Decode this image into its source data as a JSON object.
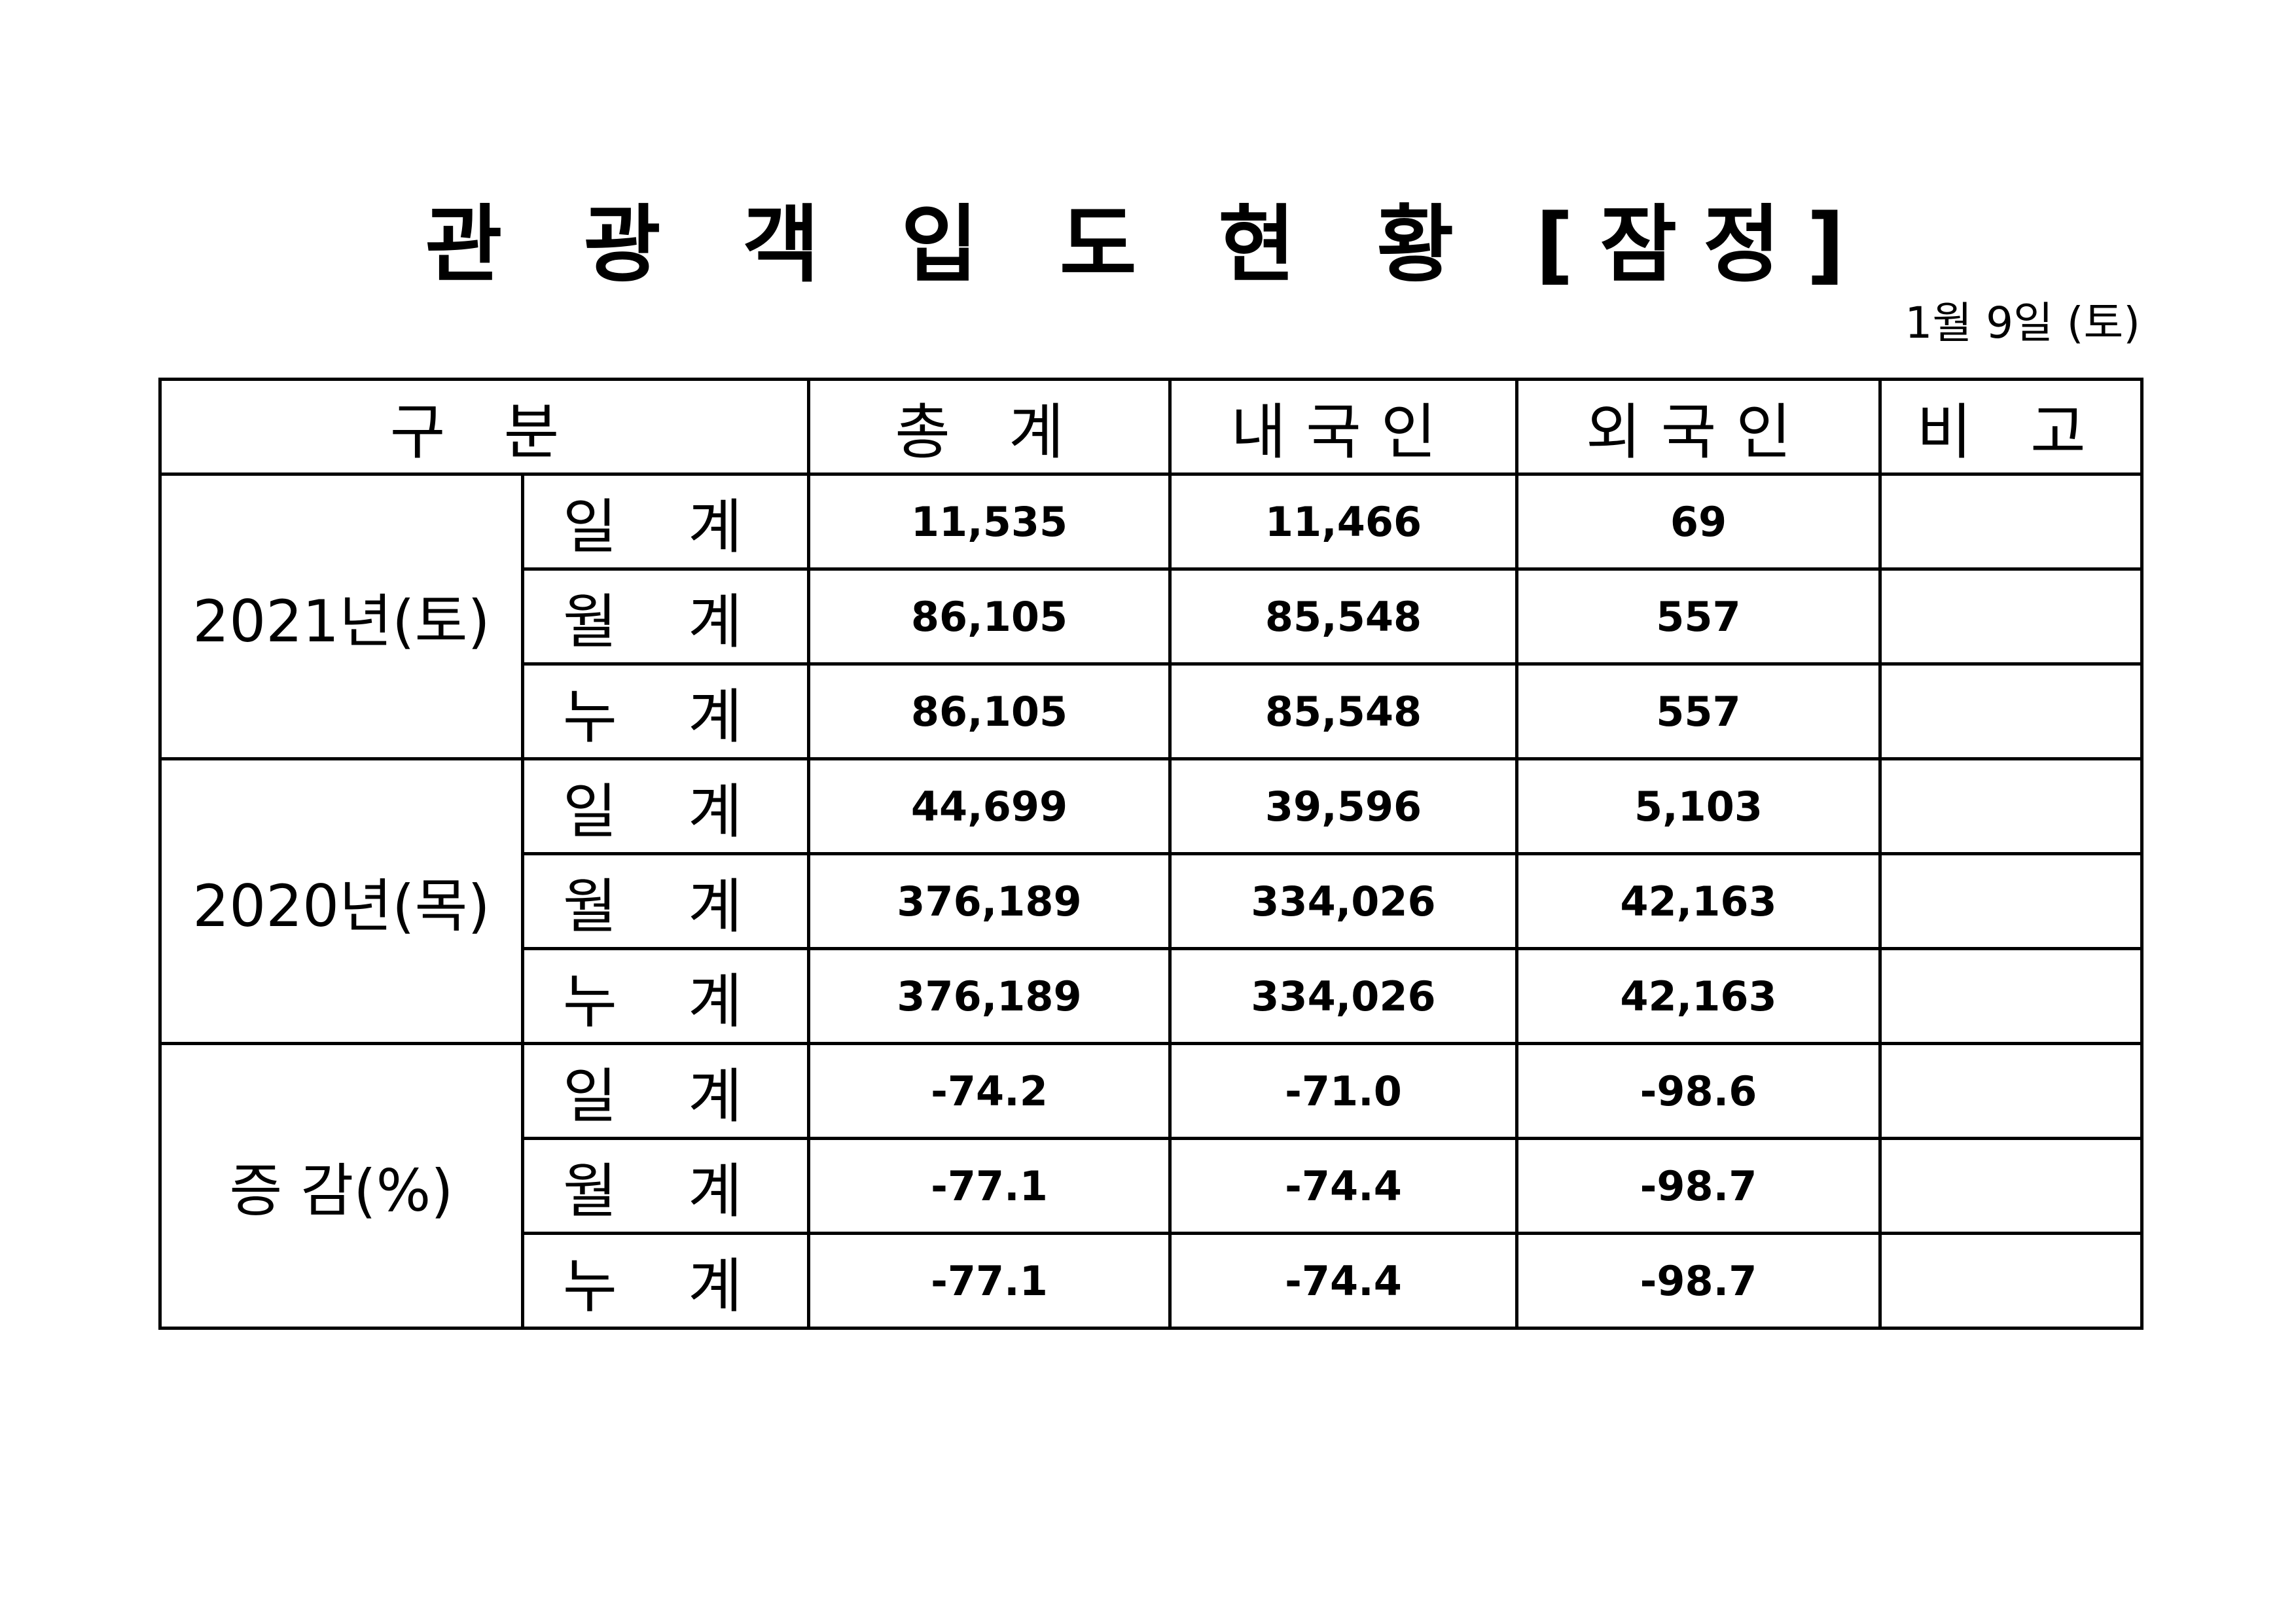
{
  "title": "관 광 객 입 도 현 황 [잠정]",
  "date": "1월 9일 (토)",
  "headers": [
    "구   분",
    "총  계",
    "내국인",
    "외국인",
    "비  고"
  ],
  "groups": [
    {
      "label": "2021년(토)",
      "rows": [
        {
          "sub": "일 계",
          "total": "11,535",
          "domestic": "11,466",
          "foreign": "69",
          "note": ""
        },
        {
          "sub": "월 계",
          "total": "86,105",
          "domestic": "85,548",
          "foreign": "557",
          "note": ""
        },
        {
          "sub": "누 계",
          "total": "86,105",
          "domestic": "85,548",
          "foreign": "557",
          "note": ""
        }
      ]
    },
    {
      "label": "2020년(목)",
      "rows": [
        {
          "sub": "일 계",
          "total": "44,699",
          "domestic": "39,596",
          "foreign": "5,103",
          "note": ""
        },
        {
          "sub": "월 계",
          "total": "376,189",
          "domestic": "334,026",
          "foreign": "42,163",
          "note": ""
        },
        {
          "sub": "누 계",
          "total": "376,189",
          "domestic": "334,026",
          "foreign": "42,163",
          "note": ""
        }
      ]
    },
    {
      "label": "증 감(%)",
      "rows": [
        {
          "sub": "일 계",
          "total": "-74.2",
          "domestic": "-71.0",
          "foreign": "-98.6",
          "note": ""
        },
        {
          "sub": "월 계",
          "total": "-77.1",
          "domestic": "-74.4",
          "foreign": "-98.7",
          "note": ""
        },
        {
          "sub": "누 계",
          "total": "-77.1",
          "domestic": "-74.4",
          "foreign": "-98.7",
          "note": ""
        }
      ]
    }
  ]
}
